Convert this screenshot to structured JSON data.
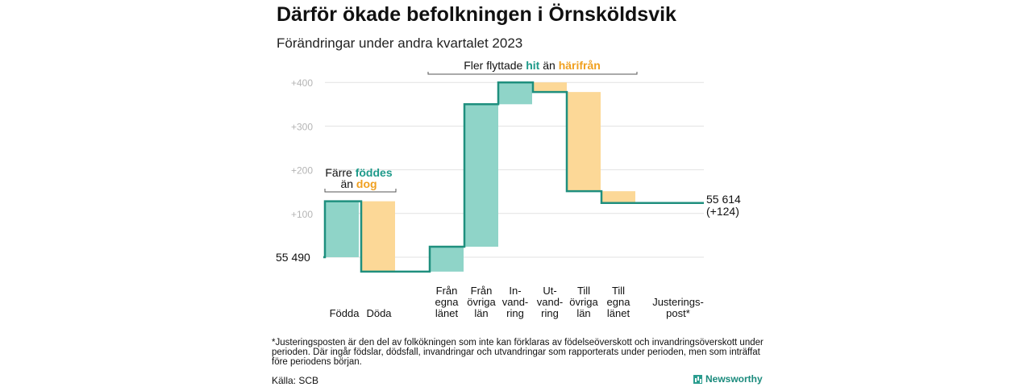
{
  "title": "Därför ökade befolkningen i Örnsköldsvik",
  "subtitle": "Förändringar under andra kvartalet 2023",
  "footnote": "*Justeringsposten är den del av folkökningen som inte kan förklaras av födelseöverskott och invandringsöverskott under perioden. Där ingår födslar, dödsfall, invandringar och utvandringar som rapporterats under perioden, men som inträffat före periodens början.",
  "source": "Källa: SCB",
  "brand": "Newsworthy",
  "colors": {
    "increase": "#8fd4c8",
    "decrease": "#fcd897",
    "line": "#1f8f7e",
    "teal_text": "#1e9a8a",
    "orange_text": "#f0a020",
    "grid": "#e2e2e2",
    "tick": "#b5b5b5"
  },
  "annotations": {
    "birth_death": {
      "pre1": "Färre ",
      "hl1": "föddes",
      "pre2": "än ",
      "hl2": "dog"
    },
    "migration": {
      "pre1": "Fler flyttade ",
      "hl1": "hit",
      "pre2": " än ",
      "hl2": "härifrån"
    }
  },
  "chart_data": {
    "type": "waterfall",
    "start_label": "55  490",
    "end_label": [
      "55 614",
      "(+124)"
    ],
    "y_ticks": [
      "+100",
      "+200",
      "+300",
      "+400"
    ],
    "ylim": [
      -35,
      420
    ],
    "grid": true,
    "bars": [
      {
        "label": [
          "Födda"
        ],
        "value": 128
      },
      {
        "label": [
          "Döda"
        ],
        "value": -161
      },
      {
        "label": [
          "Från",
          "egna",
          "länet"
        ],
        "value": 57
      },
      {
        "label": [
          "Från",
          "övriga",
          "län"
        ],
        "value": 326
      },
      {
        "label": [
          "In-",
          "vand-",
          "ring"
        ],
        "value": 50
      },
      {
        "label": [
          "Ut-",
          "vand-",
          "ring"
        ],
        "value": -22
      },
      {
        "label": [
          "Till",
          "övriga",
          "län"
        ],
        "value": -227
      },
      {
        "label": [
          "Till",
          "egna",
          "länet"
        ],
        "value": -27
      },
      {
        "label": [
          "Justerings-",
          "post*"
        ],
        "value": 0
      }
    ]
  }
}
